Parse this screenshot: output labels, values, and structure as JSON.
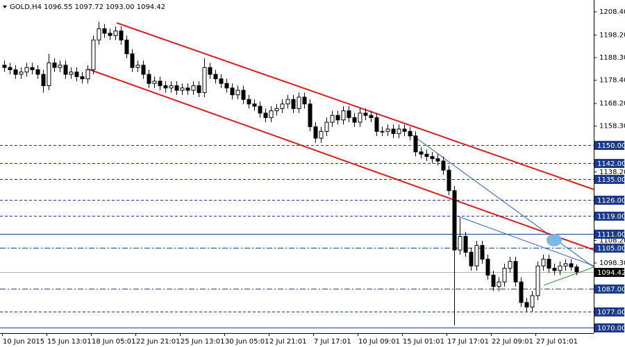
{
  "chart_data": {
    "type": "candlestick",
    "title": "GOLD,H4  1096.55 1097.72 1093.00 1094.42",
    "ylim": [
      1067.57,
      1213.57
    ],
    "yticks": [
      {
        "value": 1208.4,
        "label": "1208.40"
      },
      {
        "value": 1198.2,
        "label": "1198.20"
      },
      {
        "value": 1188.3,
        "label": "1188.30"
      },
      {
        "value": 1178.4,
        "label": "1178.40"
      },
      {
        "value": 1168.2,
        "label": "1168.20"
      },
      {
        "value": 1158.3,
        "label": "1158.30"
      },
      {
        "value": 1138.2,
        "label": "1138.20"
      },
      {
        "value": 1108.2,
        "label": "1108.20"
      },
      {
        "value": 1098.3,
        "label": "1098.30"
      }
    ],
    "time_labels": [
      "10 Jun 2015",
      "15 Jun 13:01",
      "18 Jun 05:01",
      "22 Jun 21:01",
      "25 Jun 13:01",
      "30 Jun 05:01",
      "2 Jul 21:01",
      "7 Jul 17:01",
      "10 Jul 09:01",
      "15 Jul 01:01",
      "17 Jul 17:01",
      "22 Jul 09:01",
      "27 Jul 01:01"
    ],
    "levels": [
      {
        "value": 1150,
        "label": "1150.00",
        "style": "dash"
      },
      {
        "value": 1142,
        "label": "1142.00",
        "style": "dash"
      },
      {
        "value": 1135,
        "label": "1135.00",
        "style": "dash"
      },
      {
        "value": 1126,
        "label": "1126.00",
        "style": "dash"
      },
      {
        "value": 1119,
        "label": "1119.00",
        "style": "dash"
      },
      {
        "value": 1111,
        "label": "1111.00",
        "style": "solid"
      },
      {
        "value": 1105,
        "label": "1105.00",
        "style": "dashdot"
      },
      {
        "value": 1094.42,
        "style": "price"
      },
      {
        "value": 1087,
        "label": "1087.00",
        "style": "dashdot"
      },
      {
        "value": 1077,
        "label": "1077.00",
        "style": "dash"
      },
      {
        "value": 1070,
        "label": "1070.00",
        "style": "solid"
      }
    ],
    "open": [
      1185,
      1184,
      1183,
      1181,
      1182,
      1184,
      1183,
      1181,
      1176,
      1186,
      1184,
      1185,
      1181,
      1182,
      1180,
      1179,
      1183,
      1196,
      1201,
      1199,
      1198,
      1200,
      1196,
      1190,
      1184,
      1185,
      1181,
      1177,
      1178,
      1176,
      1175,
      1176,
      1174,
      1175,
      1174,
      1176,
      1173,
      1184,
      1181,
      1179,
      1177,
      1175,
      1172,
      1174,
      1170,
      1168,
      1167,
      1164,
      1162,
      1165,
      1166,
      1168,
      1170,
      1166,
      1171,
      1168,
      1158,
      1153,
      1156,
      1160,
      1163,
      1161,
      1165,
      1162,
      1160,
      1164,
      1163,
      1162,
      1156,
      1156,
      1157,
      1155,
      1157,
      1156,
      1154,
      1147,
      1146,
      1145,
      1144,
      1143,
      1139,
      1130,
      1104,
      1110,
      1103,
      1097,
      1106,
      1100,
      1093,
      1088,
      1090,
      1096,
      1099,
      1090,
      1081,
      1079,
      1084,
      1097,
      1100,
      1096,
      1095,
      1097,
      1098,
      1096.55
    ],
    "high": [
      1187,
      1186,
      1185,
      1184,
      1186,
      1186,
      1185,
      1183,
      1190,
      1188,
      1187,
      1187,
      1184,
      1184,
      1182,
      1185,
      1198,
      1204,
      1203,
      1201,
      1202,
      1202,
      1198,
      1192,
      1187,
      1187,
      1183,
      1180,
      1180,
      1178,
      1178,
      1178,
      1177,
      1177,
      1178,
      1178,
      1188,
      1186,
      1183,
      1181,
      1179,
      1177,
      1176,
      1176,
      1172,
      1170,
      1169,
      1166,
      1167,
      1168,
      1170,
      1172,
      1172,
      1173,
      1173,
      1170,
      1160,
      1158,
      1162,
      1165,
      1165,
      1167,
      1167,
      1164,
      1166,
      1166,
      1165,
      1164,
      1158,
      1159,
      1159,
      1159,
      1159,
      1158,
      1156,
      1149,
      1148,
      1147,
      1146,
      1145,
      1141,
      1132,
      1118,
      1112,
      1105,
      1108,
      1108,
      1102,
      1095,
      1092,
      1098,
      1101,
      1101,
      1092,
      1083,
      1086,
      1099,
      1102,
      1102,
      1098,
      1099,
      1100,
      1100,
      1097.72
    ],
    "low": [
      1182,
      1181,
      1179,
      1179,
      1180,
      1181,
      1179,
      1173,
      1174,
      1182,
      1182,
      1179,
      1179,
      1178,
      1177,
      1177,
      1181,
      1194,
      1197,
      1196,
      1196,
      1194,
      1188,
      1182,
      1182,
      1179,
      1175,
      1175,
      1174,
      1173,
      1173,
      1172,
      1172,
      1172,
      1172,
      1171,
      1171,
      1179,
      1177,
      1175,
      1173,
      1170,
      1170,
      1168,
      1166,
      1165,
      1162,
      1160,
      1160,
      1163,
      1164,
      1166,
      1164,
      1164,
      1166,
      1156,
      1151,
      1151,
      1154,
      1158,
      1159,
      1159,
      1160,
      1158,
      1158,
      1161,
      1160,
      1154,
      1154,
      1154,
      1153,
      1153,
      1154,
      1152,
      1145,
      1144,
      1143,
      1142,
      1141,
      1137,
      1128,
      1071,
      1102,
      1101,
      1095,
      1095,
      1098,
      1091,
      1086,
      1086,
      1088,
      1094,
      1088,
      1079,
      1077,
      1077,
      1082,
      1095,
      1094,
      1093,
      1093,
      1095,
      1095,
      1093
    ],
    "close": [
      1184,
      1183,
      1181,
      1182,
      1184,
      1183,
      1181,
      1176,
      1186,
      1184,
      1185,
      1181,
      1182,
      1180,
      1179,
      1183,
      1196,
      1201,
      1199,
      1198,
      1200,
      1196,
      1190,
      1184,
      1185,
      1181,
      1177,
      1178,
      1176,
      1175,
      1176,
      1174,
      1175,
      1174,
      1176,
      1173,
      1184,
      1181,
      1179,
      1177,
      1175,
      1172,
      1174,
      1170,
      1168,
      1167,
      1164,
      1162,
      1165,
      1166,
      1168,
      1170,
      1166,
      1171,
      1168,
      1158,
      1153,
      1156,
      1160,
      1163,
      1161,
      1165,
      1162,
      1160,
      1164,
      1163,
      1162,
      1156,
      1156,
      1157,
      1155,
      1157,
      1156,
      1154,
      1147,
      1146,
      1145,
      1144,
      1143,
      1139,
      1130,
      1104,
      1110,
      1103,
      1097,
      1106,
      1100,
      1093,
      1088,
      1090,
      1096,
      1099,
      1090,
      1081,
      1079,
      1084,
      1097,
      1100,
      1096,
      1095,
      1097,
      1098,
      1096.55,
      1094.42
    ],
    "up_color": "#ffffff",
    "down_color": "#000000",
    "level_color": "#1b3a8a"
  }
}
